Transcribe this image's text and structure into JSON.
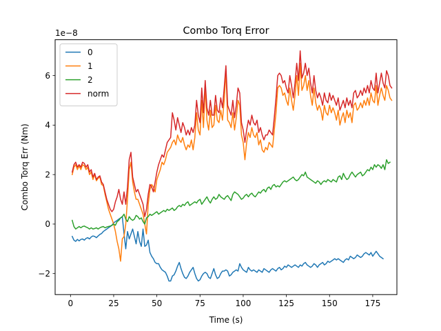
{
  "chart_data": {
    "type": "line",
    "title": "Combo Torq Error",
    "xlabel": "Time (s)",
    "ylabel": "Combo Torq Err (Nm)",
    "offset_text": "1e−8",
    "xlim": [
      -8.9,
      189
    ],
    "ylim": [
      -2.85,
      7.45
    ],
    "x_ticks": [
      0,
      25,
      50,
      75,
      100,
      125,
      150,
      175
    ],
    "y_ticks": [
      -2,
      0,
      2,
      4,
      6
    ],
    "grid": false,
    "legend_position": "upper-left",
    "x_start": 1,
    "x_step": 1,
    "series": [
      {
        "name": "0",
        "color": "#1f77b4",
        "values": [
          -0.5,
          -0.65,
          -0.7,
          -0.62,
          -0.68,
          -0.62,
          -0.6,
          -0.65,
          -0.58,
          -0.55,
          -0.6,
          -0.52,
          -0.48,
          -0.5,
          -0.55,
          -0.48,
          -0.42,
          -0.38,
          -0.3,
          -0.25,
          -0.2,
          -0.15,
          -0.1,
          -0.05,
          0.05,
          0.1,
          0.15,
          0.2,
          0.25,
          0.3,
          -0.4,
          -1.0,
          -0.3,
          -0.6,
          -0.4,
          -0.2,
          -0.5,
          -0.8,
          -0.3,
          -0.7,
          -0.9,
          -0.2,
          -0.9,
          -0.85,
          -0.65,
          -1.15,
          -1.3,
          -1.4,
          -1.55,
          -1.6,
          -1.6,
          -1.75,
          -1.85,
          -1.9,
          -1.95,
          -2.1,
          -2.3,
          -2.3,
          -2.1,
          -2.05,
          -1.9,
          -1.7,
          -1.55,
          -1.8,
          -2.0,
          -2.15,
          -2.2,
          -2.1,
          -1.95,
          -1.85,
          -1.75,
          -2.0,
          -2.2,
          -2.3,
          -2.25,
          -2.1,
          -2.0,
          -1.95,
          -2.0,
          -2.15,
          -2.2,
          -2.0,
          -1.8,
          -2.05,
          -2.2,
          -2.15,
          -2.0,
          -1.9,
          -1.9,
          -1.85,
          -1.9,
          -2.1,
          -2.05,
          -1.95,
          -1.9,
          -1.85,
          -1.9,
          -1.6,
          -1.75,
          -1.85,
          -1.9,
          -1.95,
          -1.75,
          -1.85,
          -1.9,
          -1.85,
          -1.9,
          -1.95,
          -1.85,
          -1.9,
          -1.95,
          -1.8,
          -1.85,
          -1.9,
          -1.95,
          -1.85,
          -1.8,
          -1.85,
          -1.9,
          -1.8,
          -1.75,
          -1.85,
          -1.8,
          -1.7,
          -1.75,
          -1.65,
          -1.7,
          -1.75,
          -1.7,
          -1.65,
          -1.7,
          -1.75,
          -1.65,
          -1.7,
          -1.6,
          -1.55,
          -1.65,
          -1.7,
          -1.75,
          -1.7,
          -1.6,
          -1.65,
          -1.75,
          -1.65,
          -1.6,
          -1.55,
          -1.65,
          -1.6,
          -1.5,
          -1.55,
          -1.5,
          -1.45,
          -1.4,
          -1.45,
          -1.4,
          -1.45,
          -1.5,
          -1.55,
          -1.45,
          -1.4,
          -1.45,
          -1.3,
          -1.35,
          -1.4,
          -1.35,
          -1.25,
          -1.3,
          -1.35,
          -1.3,
          -1.2,
          -1.15,
          -1.2,
          -1.25,
          -1.15,
          -1.3,
          -1.2,
          -1.1,
          -1.2,
          -1.3,
          -1.35,
          -1.4
        ]
      },
      {
        "name": "1",
        "color": "#ff7f0e",
        "values": [
          2.0,
          2.3,
          2.4,
          2.2,
          2.35,
          2.2,
          2.4,
          2.35,
          2.2,
          2.3,
          2.0,
          2.1,
          1.8,
          2.0,
          1.75,
          1.85,
          1.9,
          1.6,
          1.55,
          1.2,
          0.9,
          0.6,
          0.4,
          0.2,
          0.0,
          -0.3,
          -0.7,
          -1.0,
          -1.5,
          -0.6,
          -0.5,
          0.0,
          1.0,
          2.2,
          2.5,
          1.7,
          1.3,
          1.0,
          1.0,
          0.8,
          0.6,
          0.4,
          0.0,
          -0.4,
          0.8,
          1.4,
          1.6,
          1.5,
          1.3,
          1.8,
          2.0,
          2.2,
          2.5,
          2.4,
          2.6,
          2.9,
          3.0,
          3.1,
          3.3,
          3.4,
          3.2,
          3.6,
          3.4,
          3.3,
          3.5,
          3.2,
          3.0,
          3.2,
          3.1,
          3.4,
          3.0,
          3.5,
          4.5,
          3.8,
          3.6,
          5.0,
          3.9,
          5.5,
          4.2,
          3.8,
          4.6,
          3.9,
          4.0,
          4.8,
          4.2,
          4.1,
          4.6,
          4.2,
          5.0,
          6.2,
          4.2,
          4.1,
          3.9,
          4.5,
          3.8,
          4.3,
          5.0,
          4.8,
          3.6,
          3.3,
          2.6,
          3.3,
          3.7,
          3.5,
          3.9,
          3.6,
          3.5,
          3.7,
          3.2,
          3.4,
          3.0,
          2.9,
          3.1,
          3.0,
          3.3,
          3.2,
          3.1,
          3.8,
          4.5,
          5.5,
          5.6,
          5.5,
          5.2,
          5.3,
          5.0,
          4.8,
          5.5,
          5.0,
          4.6,
          5.2,
          6.0,
          5.2,
          6.5,
          5.4,
          5.6,
          6.0,
          5.4,
          5.8,
          5.2,
          4.8,
          5.5,
          4.9,
          4.6,
          4.8,
          4.6,
          4.2,
          4.8,
          4.5,
          4.4,
          4.8,
          4.5,
          4.7,
          4.5,
          4.2,
          4.6,
          4.0,
          4.3,
          4.5,
          4.1,
          4.6,
          4.3,
          4.5,
          4.1,
          4.8,
          4.9,
          4.6,
          4.7,
          4.9,
          4.7,
          5.0,
          4.8,
          5.1,
          4.8,
          5.3,
          5.0,
          4.9,
          5.6,
          4.8,
          5.2,
          5.5,
          5.2,
          5.0,
          5.6,
          5.4,
          5.1,
          5.0
        ]
      },
      {
        "name": "2",
        "color": "#2ca02c",
        "values": [
          0.15,
          -0.1,
          -0.2,
          -0.15,
          -0.1,
          -0.15,
          -0.1,
          -0.08,
          -0.12,
          -0.15,
          -0.2,
          -0.15,
          -0.2,
          -0.18,
          -0.15,
          -0.2,
          -0.15,
          -0.12,
          -0.1,
          -0.15,
          -0.12,
          -0.1,
          -0.08,
          -0.05,
          0.0,
          -0.05,
          0.1,
          0.15,
          0.25,
          0.3,
          0.4,
          0.2,
          0.1,
          0.3,
          0.2,
          0.15,
          0.2,
          0.35,
          0.3,
          0.2,
          0.25,
          0.1,
          0.0,
          0.25,
          0.3,
          0.4,
          0.35,
          0.4,
          0.45,
          0.5,
          0.4,
          0.45,
          0.5,
          0.55,
          0.5,
          0.6,
          0.55,
          0.6,
          0.65,
          0.55,
          0.6,
          0.7,
          0.75,
          0.7,
          0.8,
          0.75,
          0.85,
          0.9,
          0.75,
          0.8,
          0.85,
          0.9,
          0.85,
          0.95,
          1.0,
          0.8,
          0.9,
          1.0,
          1.1,
          0.95,
          0.85,
          1.0,
          1.1,
          1.0,
          1.05,
          1.2,
          1.1,
          1.05,
          1.0,
          1.1,
          1.15,
          1.05,
          0.95,
          1.2,
          1.3,
          1.25,
          1.2,
          1.1,
          1.0,
          1.05,
          1.15,
          1.2,
          1.1,
          1.2,
          1.25,
          1.15,
          1.1,
          1.2,
          1.3,
          1.25,
          1.35,
          1.4,
          1.3,
          1.45,
          1.5,
          1.4,
          1.55,
          1.6,
          1.5,
          1.55,
          1.5,
          1.6,
          1.7,
          1.75,
          1.7,
          1.75,
          1.8,
          1.85,
          1.9,
          1.8,
          1.75,
          1.8,
          1.9,
          2.0,
          1.95,
          2.1,
          1.9,
          1.85,
          1.8,
          1.75,
          1.7,
          1.65,
          1.75,
          1.7,
          1.6,
          1.7,
          1.75,
          1.7,
          1.8,
          1.75,
          1.7,
          1.8,
          1.75,
          1.7,
          1.9,
          1.95,
          1.8,
          2.05,
          1.9,
          1.8,
          1.85,
          2.0,
          2.1,
          2.0,
          1.9,
          2.0,
          2.05,
          2.1,
          1.95,
          2.0,
          2.1,
          2.2,
          2.15,
          2.3,
          2.2,
          2.4,
          2.3,
          2.4,
          2.35,
          2.25,
          2.4,
          2.2,
          2.6,
          2.45,
          2.5
        ]
      },
      {
        "name": "norm",
        "color": "#d62728",
        "values": [
          2.1,
          2.4,
          2.5,
          2.3,
          2.4,
          2.3,
          2.5,
          2.45,
          2.3,
          2.4,
          2.1,
          2.2,
          1.9,
          2.05,
          1.8,
          1.9,
          1.95,
          1.7,
          1.6,
          1.3,
          1.0,
          0.8,
          0.6,
          0.5,
          0.6,
          0.9,
          1.1,
          1.4,
          1.0,
          0.8,
          1.3,
          0.8,
          1.5,
          2.6,
          2.9,
          1.9,
          1.6,
          1.3,
          1.4,
          1.2,
          1.0,
          0.8,
          0.3,
          0.6,
          1.2,
          1.6,
          1.5,
          1.3,
          1.7,
          2.1,
          2.4,
          2.6,
          2.8,
          2.7,
          3.0,
          3.3,
          3.4,
          3.5,
          4.5,
          4.2,
          3.8,
          4.3,
          4.0,
          3.7,
          4.1,
          3.9,
          3.6,
          3.8,
          3.6,
          3.9,
          3.7,
          4.0,
          5.0,
          4.4,
          4.1,
          5.5,
          4.5,
          5.8,
          4.7,
          4.4,
          5.0,
          4.4,
          4.4,
          5.2,
          4.6,
          4.5,
          5.1,
          4.7,
          5.5,
          6.4,
          4.8,
          4.6,
          4.4,
          5.0,
          4.3,
          4.8,
          5.5,
          5.3,
          4.1,
          3.8,
          3.3,
          3.8,
          4.2,
          4.0,
          4.4,
          4.1,
          4.0,
          4.2,
          3.7,
          3.9,
          3.6,
          3.4,
          3.6,
          3.6,
          3.8,
          3.7,
          3.6,
          4.3,
          5.1,
          6.0,
          6.1,
          6.0,
          5.7,
          5.8,
          5.5,
          5.3,
          6.0,
          5.6,
          5.1,
          5.7,
          6.5,
          5.8,
          7.0,
          5.9,
          6.1,
          6.5,
          6.0,
          6.3,
          5.7,
          5.3,
          6.0,
          5.4,
          5.1,
          5.3,
          5.1,
          4.8,
          5.3,
          5.0,
          4.9,
          5.3,
          5.0,
          5.2,
          5.0,
          4.8,
          5.1,
          4.6,
          4.8,
          5.0,
          4.7,
          5.1,
          4.8,
          5.0,
          4.7,
          5.3,
          5.4,
          5.1,
          5.2,
          5.4,
          5.2,
          5.5,
          5.3,
          5.6,
          5.3,
          5.8,
          5.5,
          5.4,
          6.1,
          5.3,
          5.7,
          6.1,
          5.7,
          5.5,
          6.2,
          6.0,
          5.6,
          5.5
        ]
      }
    ]
  }
}
